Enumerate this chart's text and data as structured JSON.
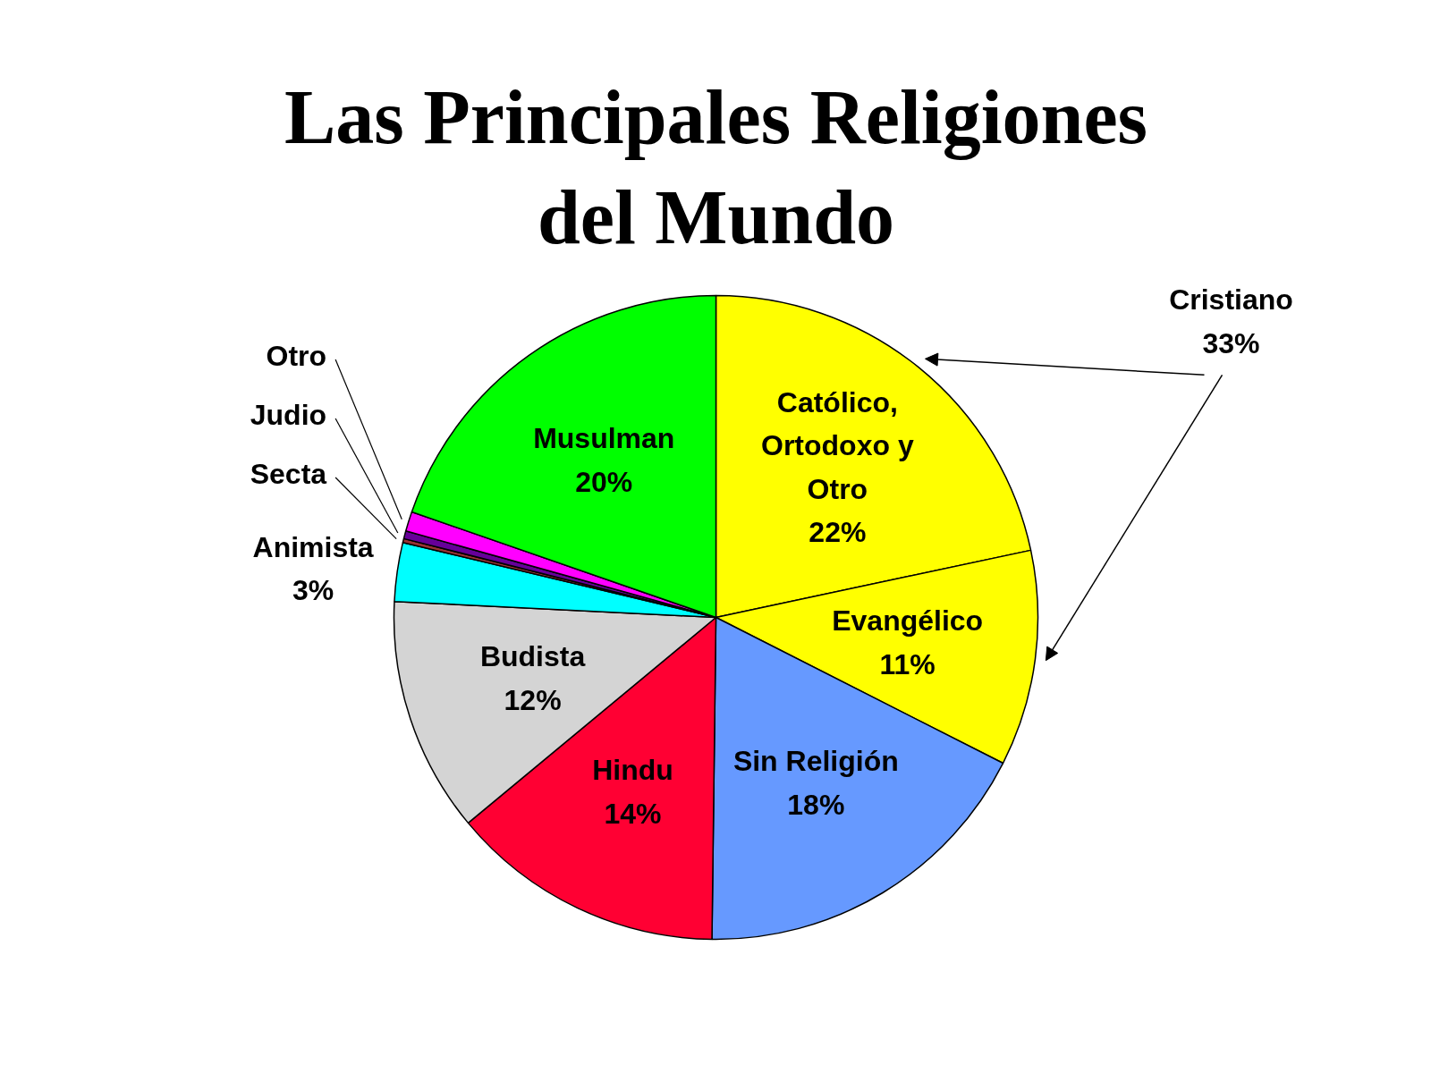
{
  "chart_data": {
    "type": "pie",
    "title": "Las Principales Religiones del Mundo",
    "categories": [
      "Católico, Ortodoxo y Otro",
      "Evangélico",
      "Sin Religión",
      "Hindu",
      "Budista",
      "Animista",
      "Secta",
      "Judio",
      "Otro",
      "Musulman"
    ],
    "values": [
      22,
      11,
      18,
      14,
      12,
      3,
      0.2,
      0.4,
      1,
      20
    ],
    "colors": [
      "#ffff00",
      "#ffff00",
      "#6699ff",
      "#ff0033",
      "#d4d4d4",
      "#00ffff",
      "#993333",
      "#660099",
      "#ff00ff",
      "#00ff00"
    ],
    "value_labels": [
      "22%",
      "11%",
      "18%",
      "14%",
      "12%",
      "3%",
      null,
      null,
      null,
      "20%"
    ],
    "annotations": [
      "Cristiano 33%"
    ]
  }
}
